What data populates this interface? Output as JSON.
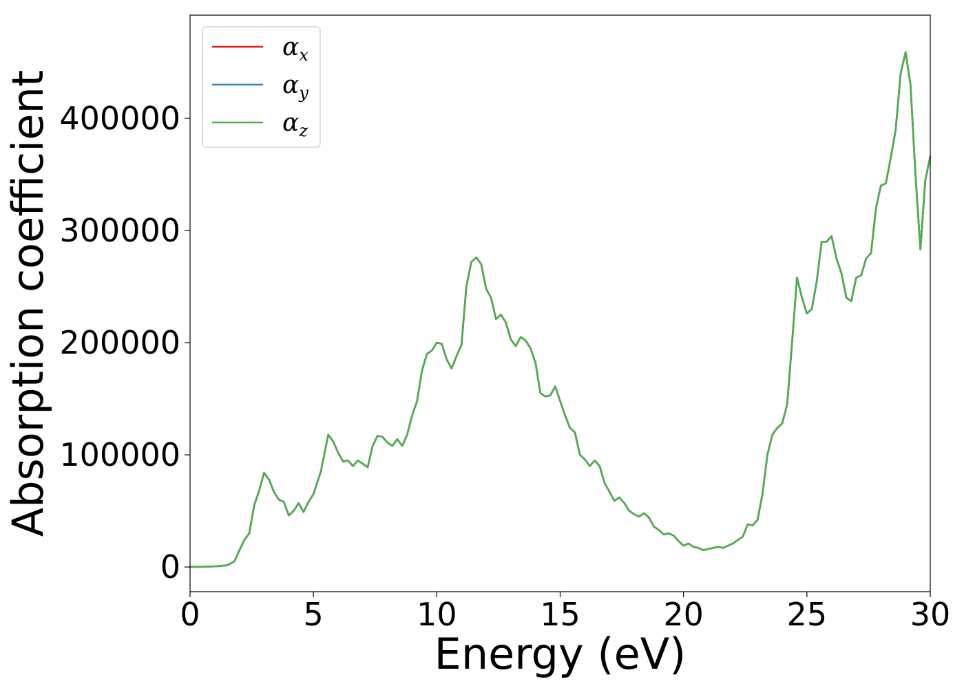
{
  "chart_data": {
    "type": "line",
    "xlabel": "Energy (eV)",
    "ylabel": "Absorption coefficient",
    "xlim": [
      0,
      30
    ],
    "ylim": [
      -22000,
      492000
    ],
    "xticks": [
      0,
      5,
      10,
      15,
      20,
      25,
      30
    ],
    "xtick_labels": [
      "0",
      "5",
      "10",
      "15",
      "20",
      "25",
      "30"
    ],
    "yticks": [
      0,
      100000,
      200000,
      300000,
      400000
    ],
    "ytick_labels": [
      "0",
      "100000",
      "200000",
      "300000",
      "400000"
    ],
    "grid": false,
    "legend_position": "top-left",
    "x": [
      0,
      0.5,
      1,
      1.5,
      1.8,
      2.0,
      2.2,
      2.4,
      2.6,
      2.8,
      3.0,
      3.2,
      3.4,
      3.6,
      3.8,
      4.0,
      4.2,
      4.4,
      4.6,
      4.8,
      5.0,
      5.3,
      5.6,
      5.8,
      6.0,
      6.2,
      6.4,
      6.6,
      6.8,
      7.0,
      7.2,
      7.4,
      7.6,
      7.8,
      8.0,
      8.2,
      8.4,
      8.6,
      8.8,
      9.0,
      9.2,
      9.4,
      9.6,
      9.8,
      10.0,
      10.2,
      10.4,
      10.6,
      10.8,
      11.0,
      11.2,
      11.4,
      11.6,
      11.8,
      12.0,
      12.2,
      12.4,
      12.6,
      12.8,
      13.0,
      13.2,
      13.4,
      13.6,
      13.8,
      14.0,
      14.2,
      14.4,
      14.6,
      14.8,
      15.0,
      15.2,
      15.4,
      15.6,
      15.8,
      16.0,
      16.2,
      16.4,
      16.6,
      16.8,
      17.0,
      17.2,
      17.4,
      17.6,
      17.8,
      18.0,
      18.2,
      18.4,
      18.6,
      18.8,
      19.0,
      19.2,
      19.4,
      19.6,
      19.8,
      20.0,
      20.2,
      20.4,
      20.6,
      20.8,
      21.0,
      21.2,
      21.4,
      21.6,
      21.8,
      22.0,
      22.2,
      22.4,
      22.6,
      22.8,
      23.0,
      23.2,
      23.4,
      23.6,
      23.8,
      24.0,
      24.2,
      24.4,
      24.6,
      24.8,
      25.0,
      25.2,
      25.4,
      25.6,
      25.8,
      26.0,
      26.2,
      26.4,
      26.6,
      26.8,
      27.0,
      27.2,
      27.4,
      27.6,
      27.8,
      28.0,
      28.2,
      28.4,
      28.6,
      28.8,
      29.0,
      29.2,
      29.4,
      29.6,
      29.8,
      30.0
    ],
    "series": [
      {
        "name": "x",
        "color": "#e41a1c",
        "values": [
          0,
          200,
          600,
          1500,
          5000,
          15000,
          24000,
          30000,
          55000,
          68000,
          84000,
          78000,
          67000,
          60000,
          58000,
          46000,
          50000,
          57000,
          49000,
          58000,
          65000,
          85000,
          118000,
          112000,
          102000,
          94000,
          95000,
          90000,
          95000,
          92000,
          89000,
          108000,
          117000,
          116000,
          111000,
          108000,
          114000,
          108000,
          118000,
          135000,
          148000,
          175000,
          190000,
          193000,
          200000,
          199000,
          185000,
          177000,
          188000,
          198000,
          250000,
          272000,
          276000,
          270000,
          248000,
          240000,
          221000,
          225000,
          218000,
          203000,
          197000,
          205000,
          202000,
          195000,
          182000,
          155000,
          152000,
          153000,
          161000,
          148000,
          135000,
          124000,
          120000,
          100000,
          96000,
          90000,
          95000,
          90000,
          75000,
          67000,
          59000,
          62000,
          57000,
          50000,
          47000,
          45000,
          48000,
          44000,
          36000,
          33000,
          29000,
          30000,
          28000,
          23000,
          19000,
          21000,
          18000,
          17000,
          15000,
          16000,
          17000,
          18000,
          17000,
          19000,
          21000,
          24000,
          27000,
          38000,
          37000,
          42000,
          65000,
          100000,
          118000,
          124000,
          128000,
          145000,
          200000,
          258000,
          240000,
          226000,
          230000,
          255000,
          290000,
          290000,
          295000,
          275000,
          262000,
          240000,
          237000,
          258000,
          260000,
          275000,
          280000,
          320000,
          340000,
          342000,
          365000,
          390000,
          440000,
          459000,
          430000,
          350000,
          283000,
          345000,
          366000
        ]
      },
      {
        "name": "y",
        "color": "#377eb8",
        "values": [
          0,
          200,
          600,
          1500,
          5000,
          15000,
          24000,
          30000,
          55000,
          68000,
          84000,
          78000,
          67000,
          60000,
          58000,
          46000,
          50000,
          57000,
          49000,
          58000,
          65000,
          85000,
          118000,
          112000,
          102000,
          94000,
          95000,
          90000,
          95000,
          92000,
          89000,
          108000,
          117000,
          116000,
          111000,
          108000,
          114000,
          108000,
          118000,
          135000,
          148000,
          175000,
          190000,
          193000,
          200000,
          199000,
          185000,
          177000,
          188000,
          198000,
          250000,
          272000,
          276000,
          270000,
          248000,
          240000,
          221000,
          225000,
          218000,
          203000,
          197000,
          205000,
          202000,
          195000,
          182000,
          155000,
          152000,
          153000,
          161000,
          148000,
          135000,
          124000,
          120000,
          100000,
          96000,
          90000,
          95000,
          90000,
          75000,
          67000,
          59000,
          62000,
          57000,
          50000,
          47000,
          45000,
          48000,
          44000,
          36000,
          33000,
          29000,
          30000,
          28000,
          23000,
          19000,
          21000,
          18000,
          17000,
          15000,
          16000,
          17000,
          18000,
          17000,
          19000,
          21000,
          24000,
          27000,
          38000,
          37000,
          42000,
          65000,
          100000,
          118000,
          124000,
          128000,
          145000,
          200000,
          258000,
          240000,
          226000,
          230000,
          255000,
          290000,
          290000,
          295000,
          275000,
          262000,
          240000,
          237000,
          258000,
          260000,
          275000,
          280000,
          320000,
          340000,
          342000,
          365000,
          390000,
          440000,
          459000,
          430000,
          350000,
          283000,
          345000,
          366000
        ]
      },
      {
        "name": "z",
        "color": "#4daf4a",
        "values": [
          0,
          200,
          600,
          1500,
          5000,
          15000,
          24000,
          30000,
          55000,
          68000,
          84000,
          78000,
          67000,
          60000,
          58000,
          46000,
          50000,
          57000,
          49000,
          58000,
          65000,
          85000,
          118000,
          112000,
          102000,
          94000,
          95000,
          90000,
          95000,
          92000,
          89000,
          108000,
          117000,
          116000,
          111000,
          108000,
          114000,
          108000,
          118000,
          135000,
          148000,
          175000,
          190000,
          193000,
          200000,
          199000,
          185000,
          177000,
          188000,
          198000,
          250000,
          272000,
          276000,
          270000,
          248000,
          240000,
          221000,
          225000,
          218000,
          203000,
          197000,
          205000,
          202000,
          195000,
          182000,
          155000,
          152000,
          153000,
          161000,
          148000,
          135000,
          124000,
          120000,
          100000,
          96000,
          90000,
          95000,
          90000,
          75000,
          67000,
          59000,
          62000,
          57000,
          50000,
          47000,
          45000,
          48000,
          44000,
          36000,
          33000,
          29000,
          30000,
          28000,
          23000,
          19000,
          21000,
          18000,
          17000,
          15000,
          16000,
          17000,
          18000,
          17000,
          19000,
          21000,
          24000,
          27000,
          38000,
          37000,
          42000,
          65000,
          100000,
          118000,
          124000,
          128000,
          145000,
          200000,
          258000,
          240000,
          226000,
          230000,
          255000,
          290000,
          290000,
          295000,
          275000,
          262000,
          240000,
          237000,
          258000,
          260000,
          275000,
          280000,
          320000,
          340000,
          342000,
          365000,
          390000,
          440000,
          459000,
          430000,
          350000,
          283000,
          345000,
          366000
        ]
      }
    ],
    "legend": [
      {
        "symbol": "α",
        "sub": "x",
        "color": "#e41a1c"
      },
      {
        "symbol": "α",
        "sub": "y",
        "color": "#377eb8"
      },
      {
        "symbol": "α",
        "sub": "z",
        "color": "#4daf4a"
      }
    ]
  }
}
